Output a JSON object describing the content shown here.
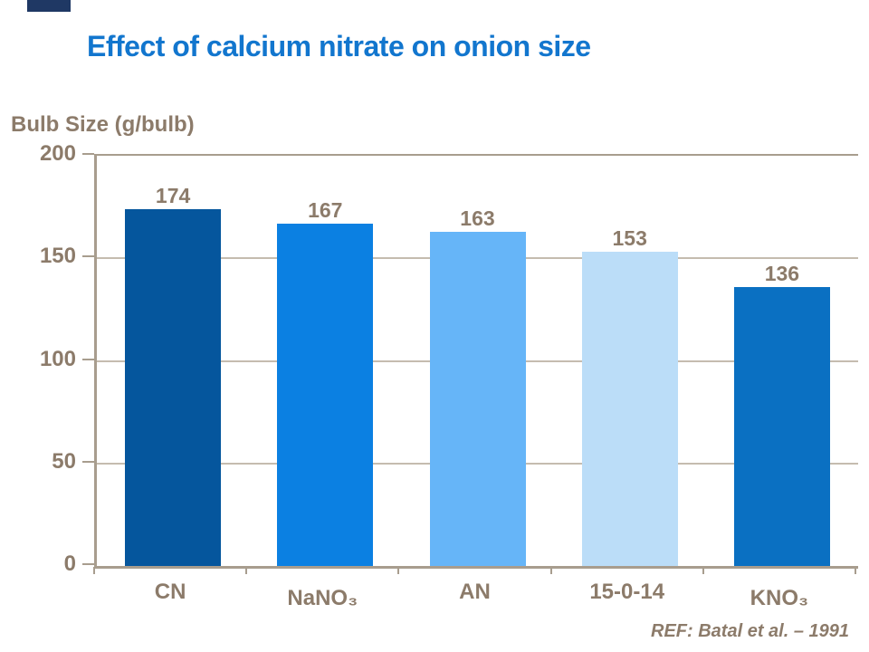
{
  "slide": {
    "title": "Effect of calcium nitrate on onion size",
    "reference": "REF: Batal et al. – 1991"
  },
  "colors": {
    "title_blue": "#1276CE",
    "text_tan": "#8C7B6A",
    "axis_line": "#A89D8E",
    "gridline": "#C5BCAF",
    "accent_bar": "#1F3864"
  },
  "chart_data": {
    "type": "bar",
    "title": "Effect of calcium nitrate on onion size",
    "ylabel": "Bulb Size (g/bulb)",
    "xlabel": "",
    "categories": [
      "CN",
      "NaNO₃",
      "AN",
      "15-0-14",
      "KNO₃"
    ],
    "values": [
      174,
      167,
      163,
      153,
      136
    ],
    "bar_colors": [
      "#05569D",
      "#0B80E2",
      "#66B5F8",
      "#BBDDF8",
      "#0A70C2"
    ],
    "ylim": [
      0,
      200
    ],
    "yticks": [
      0,
      50,
      100,
      150,
      200
    ],
    "grid": true,
    "legend": false,
    "value_labels": true,
    "reference": "REF: Batal et al. – 1991"
  }
}
